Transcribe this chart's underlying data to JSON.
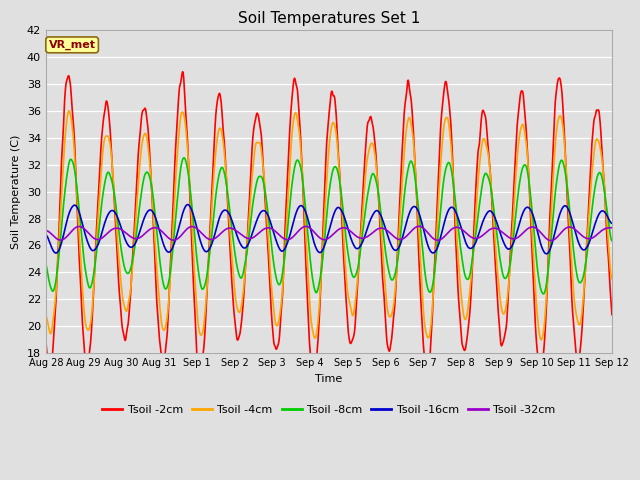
{
  "title": "Soil Temperatures Set 1",
  "xlabel": "Time",
  "ylabel": "Soil Temperature (C)",
  "ylim": [
    18,
    42
  ],
  "yticks": [
    18,
    20,
    22,
    24,
    26,
    28,
    30,
    32,
    34,
    36,
    38,
    40,
    42
  ],
  "annotation_text": "VR_met",
  "annotation_color": "#8B0000",
  "annotation_bg": "#FFFF99",
  "annotation_border": "#8B6914",
  "fig_bg_color": "#E0E0E0",
  "plot_bg_color": "#E0E0E0",
  "grid_color": "#FFFFFF",
  "series": [
    {
      "label": "Tsoil -2cm",
      "color": "#FF0000",
      "lw": 1.2
    },
    {
      "label": "Tsoil -4cm",
      "color": "#FFA500",
      "lw": 1.2
    },
    {
      "label": "Tsoil -8cm",
      "color": "#00CC00",
      "lw": 1.2
    },
    {
      "label": "Tsoil -16cm",
      "color": "#0000CC",
      "lw": 1.2
    },
    {
      "label": "Tsoil -32cm",
      "color": "#9900CC",
      "lw": 1.2
    }
  ],
  "x_tick_labels": [
    "Aug 28",
    "Aug 29",
    "Aug 30",
    "Aug 31",
    "Sep 1",
    "Sep 2",
    "Sep 3",
    "Sep 4",
    "Sep 5",
    "Sep 6",
    "Sep 7",
    "Sep 8",
    "Sep 9",
    "Sep 10",
    "Sep 11",
    "Sep 12"
  ],
  "x_tick_positions": [
    0,
    1,
    2,
    3,
    4,
    5,
    6,
    7,
    8,
    9,
    10,
    11,
    12,
    13,
    14,
    15
  ]
}
